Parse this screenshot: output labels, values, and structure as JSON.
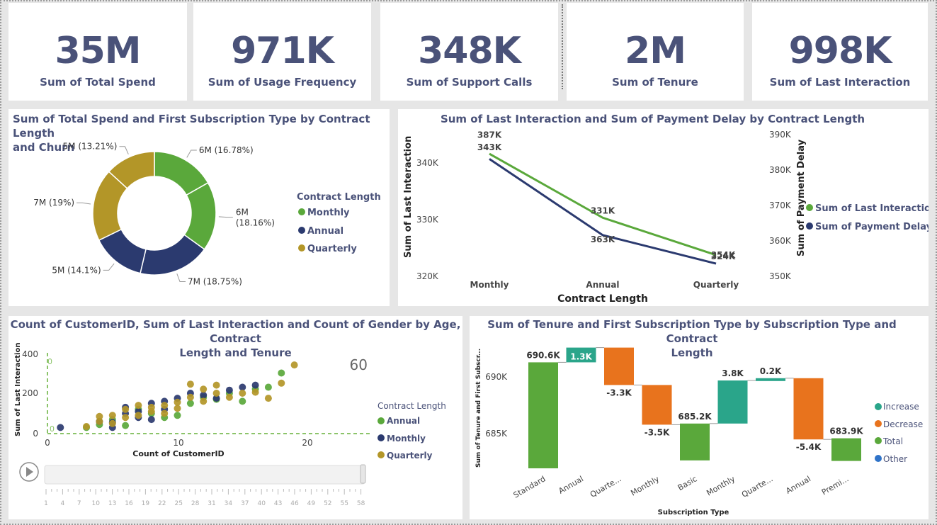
{
  "kpis": [
    {
      "value": "35M",
      "label": "Sum of Total Spend"
    },
    {
      "value": "971K",
      "label": "Sum of Usage Frequency"
    },
    {
      "value": "348K",
      "label": "Sum of Support Calls"
    },
    {
      "value": "2M",
      "label": "Sum of Tenure"
    },
    {
      "value": "998K",
      "label": "Sum of Last Interaction"
    }
  ],
  "donut": {
    "title_line1": "Sum of Total Spend and First Subscription Type by Contract Length",
    "title_line2": "and Churn",
    "legend_title": "Contract Length",
    "legend": [
      {
        "label": "Monthly",
        "color": "#5aa83b"
      },
      {
        "label": "Annual",
        "color": "#2b3a6f"
      },
      {
        "label": "Quarterly",
        "color": "#b39628"
      }
    ]
  },
  "line": {
    "title": "Sum of Last Interaction and Sum of Payment Delay by Contract Length",
    "xlabel": "Contract Length",
    "ylabel_left": "Sum of Last Interaction",
    "ylabel_right": "Sum of Payment Delay",
    "left_ticks": [
      "340K",
      "330K",
      "320K"
    ],
    "right_ticks": [
      "390K",
      "380K",
      "370K",
      "360K",
      "350K"
    ],
    "legend": [
      {
        "label": "Sum of Last Interaction",
        "color": "#5aa83b"
      },
      {
        "label": "Sum of Payment Delay",
        "color": "#2b3a6f"
      }
    ]
  },
  "scatter": {
    "title_line1": "Count of CustomerID, Sum of Last Interaction and Count of Gender by Age, Contract",
    "title_line2": "Length and Tenure",
    "xlabel": "Count of CustomerID",
    "ylabel": "Sum of Last Interaction",
    "play_value": "60",
    "legend_title": "Contract Length",
    "legend": [
      {
        "label": "Annual",
        "color": "#5aa83b"
      },
      {
        "label": "Monthly",
        "color": "#2b3a6f"
      },
      {
        "label": "Quarterly",
        "color": "#b39628"
      }
    ],
    "y_ticks": [
      "400",
      "200",
      "0"
    ],
    "x_ticks": [
      "0",
      "10",
      "20"
    ],
    "ref_labels": [
      "0",
      "0"
    ],
    "slider_ticks": [
      "1",
      "4",
      "7",
      "10",
      "13",
      "16",
      "19",
      "22",
      "25",
      "28",
      "31",
      "34",
      "37",
      "40",
      "43",
      "46",
      "49",
      "52",
      "55",
      "58"
    ]
  },
  "waterfall": {
    "title_line1": "Sum of Tenure and First Subscription Type by Subscription Type and Contract",
    "title_line2": "Length",
    "xlabel": "Subscription Type",
    "ylabel": "Sum of Tenure and First Subscr...",
    "y_ticks": [
      "690K",
      "685K"
    ],
    "legend": [
      {
        "label": "Increase",
        "color": "#2aa58a"
      },
      {
        "label": "Decrease",
        "color": "#e8731d"
      },
      {
        "label": "Total",
        "color": "#5aa83b"
      },
      {
        "label": "Other",
        "color": "#2f73c8"
      }
    ]
  },
  "chart_data": [
    {
      "type": "pie",
      "title": "Sum of Total Spend and First Subscription Type by Contract Length and Churn",
      "slices": [
        {
          "label": "6M (16.78%)",
          "percent": 16.78,
          "color": "#5aa83b"
        },
        {
          "label": "6M (18.16%)",
          "percent": 18.16,
          "color": "#5aa83b"
        },
        {
          "label": "7M (18.75%)",
          "percent": 18.75,
          "color": "#2b3a6f"
        },
        {
          "label": "5M (14.1%)",
          "percent": 14.1,
          "color": "#2b3a6f"
        },
        {
          "label": "7M (19%)",
          "percent": 19.0,
          "color": "#b39628"
        },
        {
          "label": "5M (13.21%)",
          "percent": 13.21,
          "color": "#b39628"
        }
      ]
    },
    {
      "type": "line",
      "title": "Sum of Last Interaction and Sum of Payment Delay by Contract Length",
      "categories": [
        "Monthly",
        "Annual",
        "Quarterly"
      ],
      "series": [
        {
          "name": "Sum of Last Interaction",
          "axis": "left",
          "values": [
            343,
            331,
            324
          ],
          "labels": [
            "343K",
            "331K",
            "324K"
          ],
          "color": "#5aa83b"
        },
        {
          "name": "Sum of Payment Delay",
          "axis": "right",
          "values": [
            387,
            363,
            354
          ],
          "labels": [
            "387K",
            "363K",
            "354K"
          ],
          "color": "#2b3a6f"
        }
      ],
      "ylim_left": [
        320,
        345
      ],
      "ylim_right": [
        350,
        392
      ]
    },
    {
      "type": "scatter",
      "title": "Count of CustomerID, Sum of Last Interaction and Count of Gender by Age, Contract Length and Tenure",
      "xlim": [
        0,
        25
      ],
      "ylim": [
        0,
        420
      ],
      "series": [
        {
          "name": "Annual",
          "color": "#5aa83b",
          "points": [
            [
              3,
              30
            ],
            [
              4,
              45
            ],
            [
              5,
              70
            ],
            [
              6,
              40
            ],
            [
              7,
              120
            ],
            [
              8,
              100
            ],
            [
              9,
              80
            ],
            [
              10,
              90
            ],
            [
              11,
              150
            ],
            [
              12,
              180
            ],
            [
              13,
              170
            ],
            [
              14,
              200
            ],
            [
              15,
              160
            ],
            [
              16,
              220
            ],
            [
              17,
              230
            ],
            [
              18,
              300
            ]
          ]
        },
        {
          "name": "Monthly",
          "color": "#2b3a6f",
          "points": [
            [
              1,
              30
            ],
            [
              4,
              60
            ],
            [
              5,
              30
            ],
            [
              5,
              55
            ],
            [
              6,
              100
            ],
            [
              6,
              130
            ],
            [
              7,
              80
            ],
            [
              7,
              110
            ],
            [
              8,
              70
            ],
            [
              8,
              150
            ],
            [
              9,
              120
            ],
            [
              9,
              160
            ],
            [
              10,
              175
            ],
            [
              11,
              200
            ],
            [
              12,
              190
            ],
            [
              13,
              175
            ],
            [
              14,
              215
            ],
            [
              15,
              230
            ],
            [
              16,
              240
            ]
          ]
        },
        {
          "name": "Quarterly",
          "color": "#b39628",
          "points": [
            [
              3,
              35
            ],
            [
              4,
              60
            ],
            [
              4,
              85
            ],
            [
              5,
              90
            ],
            [
              5,
              50
            ],
            [
              6,
              80
            ],
            [
              6,
              120
            ],
            [
              7,
              90
            ],
            [
              7,
              140
            ],
            [
              8,
              110
            ],
            [
              8,
              130
            ],
            [
              9,
              100
            ],
            [
              9,
              140
            ],
            [
              10,
              125
            ],
            [
              10,
              155
            ],
            [
              11,
              180
            ],
            [
              11,
              245
            ],
            [
              12,
              160
            ],
            [
              12,
              220
            ],
            [
              13,
              200
            ],
            [
              13,
              240
            ],
            [
              14,
              180
            ],
            [
              15,
              200
            ],
            [
              16,
              205
            ],
            [
              17,
              175
            ],
            [
              18,
              250
            ],
            [
              19,
              340
            ]
          ]
        }
      ]
    },
    {
      "type": "bar",
      "title": "Sum of Tenure and First Subscription Type by Subscription Type and Contract Length",
      "subtype": "waterfall",
      "ylim": [
        682.5,
        692.5
      ],
      "categories": [
        "Standard",
        "Annual",
        "Quarte...",
        "Monthly",
        "Basic",
        "Monthly",
        "Quarte...",
        "Annual",
        "Premi..."
      ],
      "steps": [
        {
          "kind": "total",
          "value": 690.6,
          "label": "690.6K"
        },
        {
          "kind": "increase",
          "value": 1.3,
          "label": "1.3K"
        },
        {
          "kind": "decrease",
          "value": -3.3,
          "label": "-3.3K"
        },
        {
          "kind": "decrease",
          "value": -3.5,
          "label": "-3.5K"
        },
        {
          "kind": "total",
          "value": 685.2,
          "label": "685.2K"
        },
        {
          "kind": "increase",
          "value": 3.8,
          "label": "3.8K"
        },
        {
          "kind": "increase",
          "value": 0.2,
          "label": "0.2K"
        },
        {
          "kind": "decrease",
          "value": -5.4,
          "label": "-5.4K"
        },
        {
          "kind": "total",
          "value": 683.9,
          "label": "683.9K"
        }
      ]
    }
  ]
}
